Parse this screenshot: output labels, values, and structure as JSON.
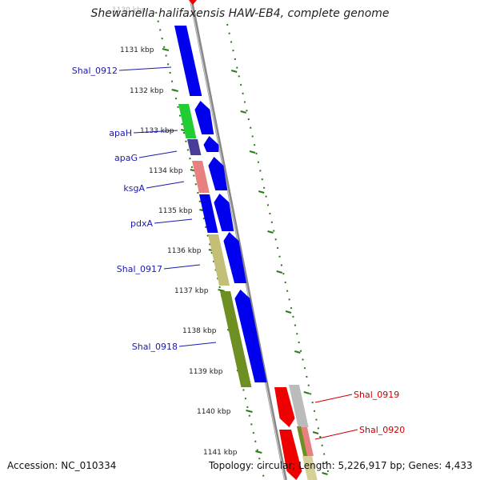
{
  "title": "Shewanella halifaxensis HAW-EB4, complete genome",
  "accession": "Accession: NC_010334",
  "summary": "Topology: circular; Length: 5,226,917 bp; Genes: 4,433",
  "top_tick_faded": "1130 kbp",
  "ticks": [
    "1131 kbp",
    "1132 kbp",
    "1133 kbp",
    "1134 kbp",
    "1135 kbp",
    "1136 kbp",
    "1137 kbp",
    "1138 kbp",
    "1139 kbp",
    "1140 kbp",
    "1141 kbp"
  ],
  "genes_left": [
    "Shal_0912",
    "apaH",
    "apaG",
    "ksgA",
    "pdxA",
    "Shal_0917",
    "Shal_0918"
  ],
  "genes_right": [
    "Shal_0919",
    "Shal_0920"
  ],
  "colors": {
    "forward_cds": "#0000ee",
    "reverse_cds": "#ee0000",
    "left_label": "#1a1aaa",
    "right_label": "#cc0000",
    "tick": "#2a7a1a",
    "backbone": "#888888"
  }
}
